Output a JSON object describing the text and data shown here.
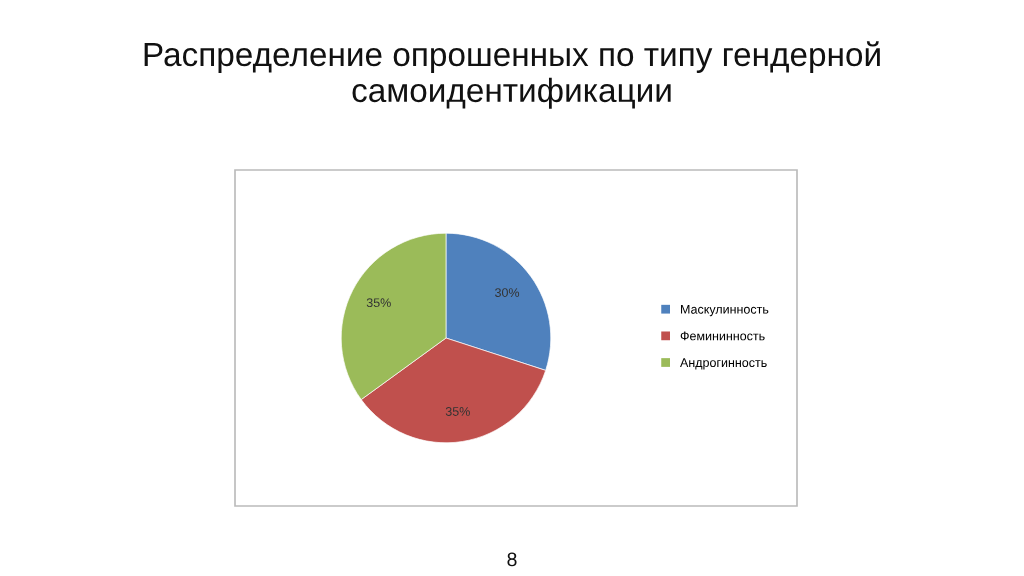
{
  "chart_data": {
    "type": "pie",
    "title": "Распределение опрошенных по типу гендерной самоидентификации",
    "categories": [
      "Маскулинность",
      "Фемининность",
      "Андрогинность"
    ],
    "values": [
      30,
      35,
      35
    ],
    "colors": [
      "#4f81bd",
      "#c0504d",
      "#9bbb59"
    ],
    "value_labels": [
      "30%",
      "35%",
      "35%"
    ],
    "legend": "right",
    "annotations": [
      "8"
    ]
  }
}
